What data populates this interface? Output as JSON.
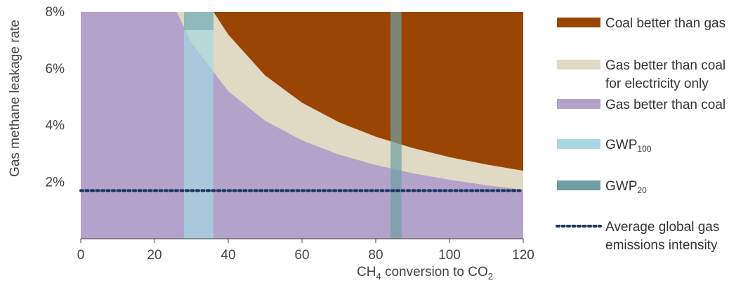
{
  "chart_data": {
    "type": "area",
    "xlabel": "CH4 conversion to CO2",
    "ylabel": "Gas methane leakage rate",
    "xlim": [
      0,
      120
    ],
    "ylim": [
      0,
      8
    ],
    "x_ticks": [
      0,
      20,
      40,
      60,
      80,
      100,
      120
    ],
    "x_tick_labels": [
      "0",
      "20",
      "40",
      "60",
      "80",
      "100",
      "120"
    ],
    "y_ticks": [
      2,
      4,
      6,
      8
    ],
    "y_tick_labels": [
      "2%",
      "4%",
      "6%",
      "8%"
    ],
    "grid": false,
    "legend_position": "right",
    "colors": {
      "coal_better": "#9a4504",
      "gas_better_electricity": "#e0dac4",
      "gas_better": "#b3a2c9",
      "gwp100": "#a6d8e3",
      "gwp20": "#6f9fa3",
      "average_line": "#1c3461"
    },
    "boundaries": {
      "coal_vs_gas_electricity": {
        "x": [
          36,
          40,
          50,
          60,
          70,
          80,
          90,
          100,
          110,
          120
        ],
        "y": [
          8.0,
          7.2,
          5.76,
          4.8,
          4.11,
          3.6,
          3.2,
          2.88,
          2.62,
          2.4
        ]
      },
      "gas_electricity_vs_gas": {
        "x": [
          26,
          30,
          40,
          50,
          60,
          70,
          80,
          90,
          100,
          110,
          120
        ],
        "y": [
          8.0,
          6.93,
          5.2,
          4.16,
          3.47,
          2.97,
          2.6,
          2.31,
          2.08,
          1.89,
          1.73
        ]
      }
    },
    "bands": [
      {
        "name": "GWP100",
        "x_range": [
          28,
          36
        ]
      },
      {
        "name": "GWP20",
        "x_range": [
          84,
          87
        ]
      }
    ],
    "average_line": {
      "y": 1.7
    },
    "legend": [
      {
        "key": "coal_better",
        "label": "Coal better than gas",
        "style": "patch"
      },
      {
        "key": "gas_better_electricity",
        "lines": [
          "Gas better than coal",
          "for electricity only"
        ],
        "style": "patch"
      },
      {
        "key": "gas_better",
        "label": "Gas better than coal",
        "style": "patch"
      },
      {
        "key": "gwp100",
        "label": "GWP",
        "sub": "100",
        "style": "patch"
      },
      {
        "key": "gwp20",
        "label": "GWP",
        "sub": "20",
        "style": "patch"
      },
      {
        "key": "average_line",
        "lines": [
          "Average global gas",
          "emissions intensity"
        ],
        "style": "dots"
      }
    ]
  }
}
